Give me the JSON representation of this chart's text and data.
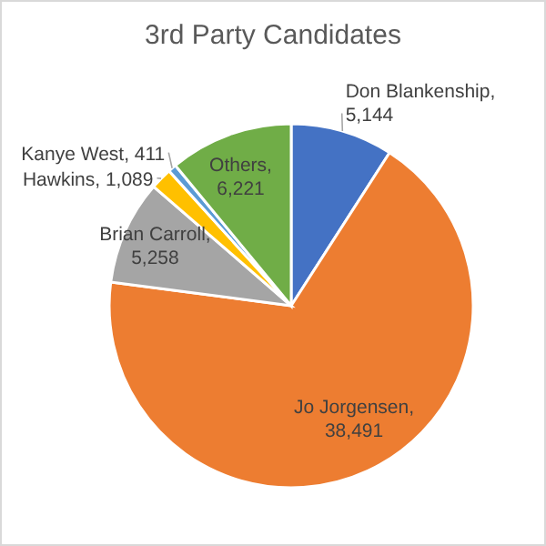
{
  "chart_data": {
    "type": "pie",
    "title": "3rd Party Candidates",
    "categories": [
      "Don Blankenship",
      "Jo Jorgensen",
      "Brian Carroll",
      "Hawkins",
      "Kanye West",
      "Others"
    ],
    "values": [
      5144,
      38491,
      5258,
      1089,
      411,
      6221
    ],
    "value_labels": [
      ", 5,144",
      ", 38,491",
      ", 5,258",
      ", 1,089",
      ", 411",
      ", 6,221"
    ],
    "colors": [
      "#4472c4",
      "#ed7d31",
      "#a5a5a5",
      "#ffc000",
      "#5b9bd5",
      "#70ad47"
    ],
    "legend": false
  }
}
